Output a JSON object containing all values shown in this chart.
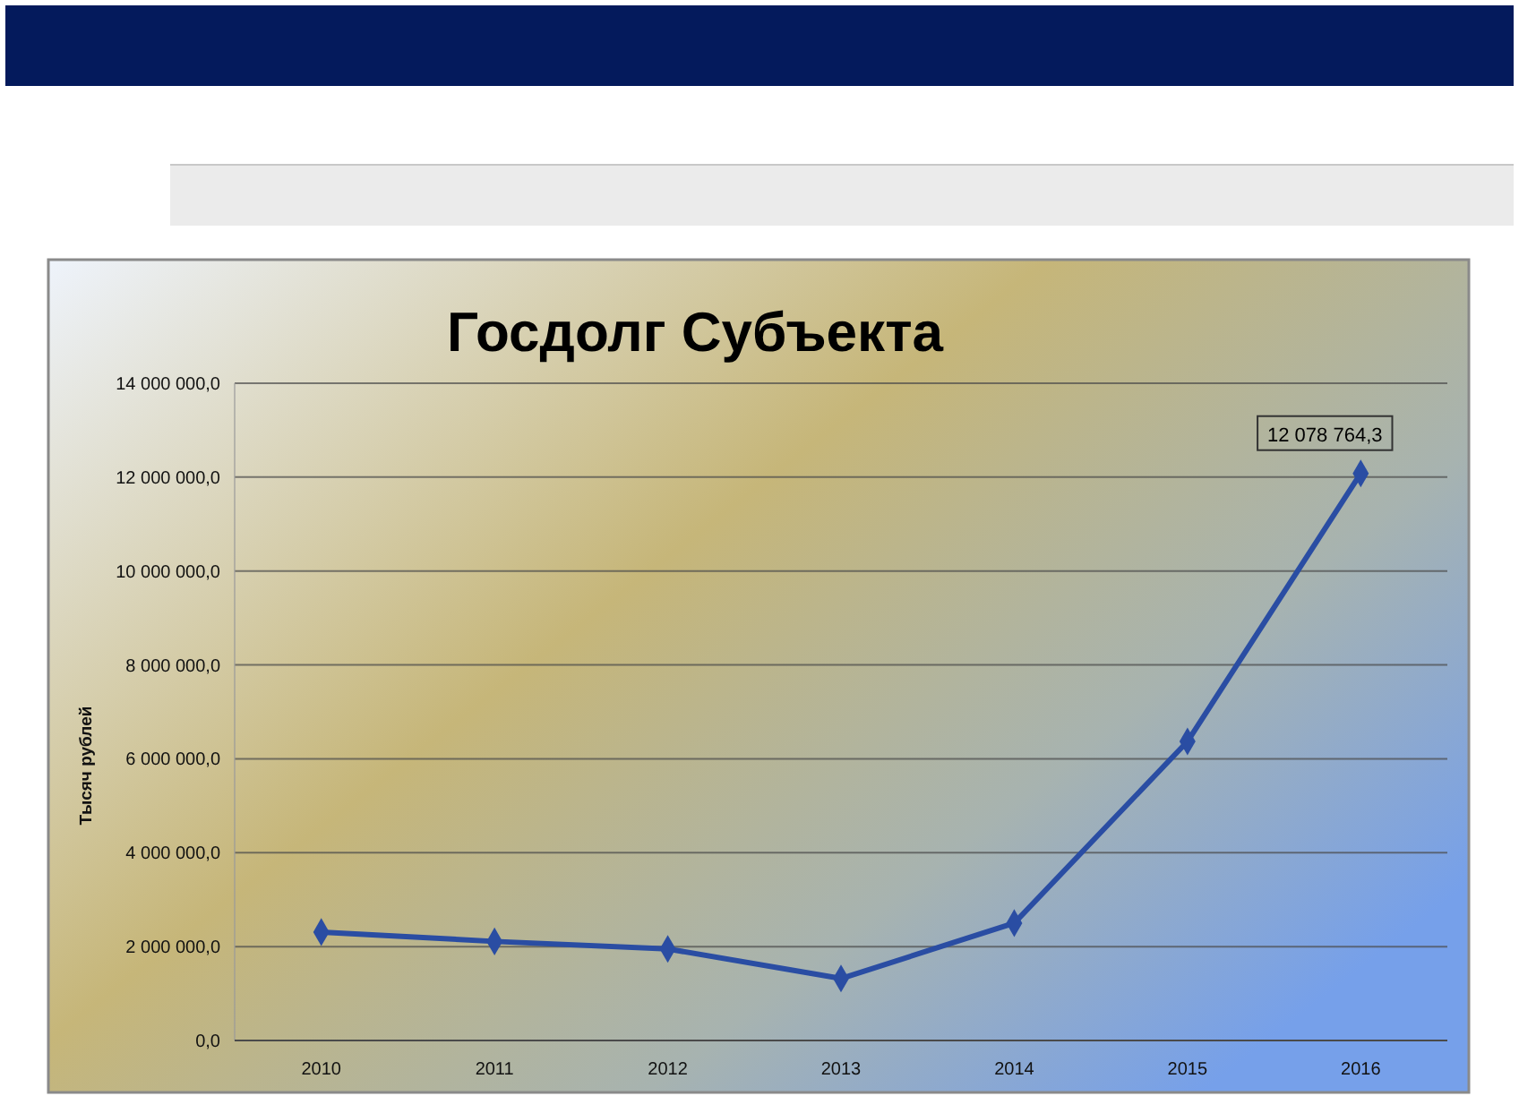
{
  "chart_data": {
    "type": "line",
    "title": "Госдолг Субъекта",
    "ylabel": "Тысяч рублей",
    "categories": [
      "2010",
      "2011",
      "2012",
      "2013",
      "2014",
      "2015",
      "2016"
    ],
    "series": [
      {
        "color": "#2a4da3",
        "values": [
          2310000,
          2110000,
          1950000,
          1320000,
          2500000,
          6370000,
          12078764.3
        ],
        "value_labels": [
          null,
          null,
          null,
          null,
          null,
          null,
          "12 078 764,3"
        ]
      }
    ],
    "ylim": [
      0,
      14000000
    ],
    "yticks": [
      {
        "value": 0,
        "label": "0,0"
      },
      {
        "value": 2000000,
        "label": "2 000 000,0"
      },
      {
        "value": 4000000,
        "label": "4 000 000,0"
      },
      {
        "value": 6000000,
        "label": "6 000 000,0"
      },
      {
        "value": 8000000,
        "label": "8 000 000,0"
      },
      {
        "value": 10000000,
        "label": "10 000 000,0"
      },
      {
        "value": 12000000,
        "label": "12 000 000,0"
      },
      {
        "value": 14000000,
        "label": "14 000 000,0"
      }
    ],
    "grid": "y",
    "marker": "diamond",
    "line_style": "solid"
  }
}
